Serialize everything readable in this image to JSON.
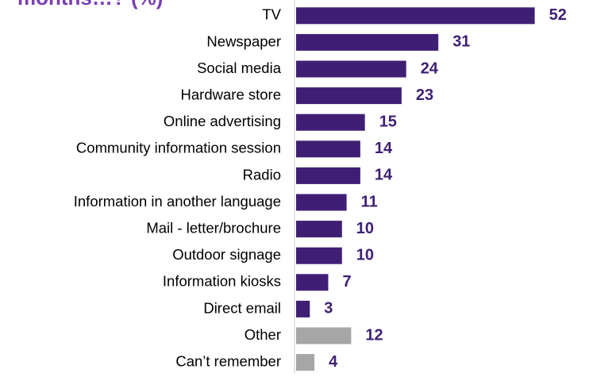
{
  "chart_data": {
    "type": "bar",
    "orientation": "horizontal",
    "title_fragment": "months…? (%)",
    "categories": [
      "TV",
      "Newspaper",
      "Social media",
      "Hardware store",
      "Online advertising",
      "Community information session",
      "Radio",
      "Information in another language",
      "Mail - letter/brochure",
      "Outdoor signage",
      "Information kiosks",
      "Direct email",
      "Other",
      "Can’t remember"
    ],
    "values": [
      52,
      31,
      24,
      23,
      15,
      14,
      14,
      11,
      10,
      10,
      7,
      3,
      12,
      4
    ],
    "bar_colors": [
      "#3F1F74",
      "#3F1F74",
      "#3F1F74",
      "#3F1F74",
      "#3F1F74",
      "#3F1F74",
      "#3F1F74",
      "#3F1F74",
      "#3F1F74",
      "#3F1F74",
      "#3F1F74",
      "#3F1F74",
      "#A6A6A6",
      "#A6A6A6"
    ],
    "value_label_color": "#3F1F74",
    "title_color": "#7B3FB3",
    "axis_color": "#C8C8C8",
    "xlim": [
      0,
      55
    ],
    "grid": false,
    "legend": "none"
  }
}
